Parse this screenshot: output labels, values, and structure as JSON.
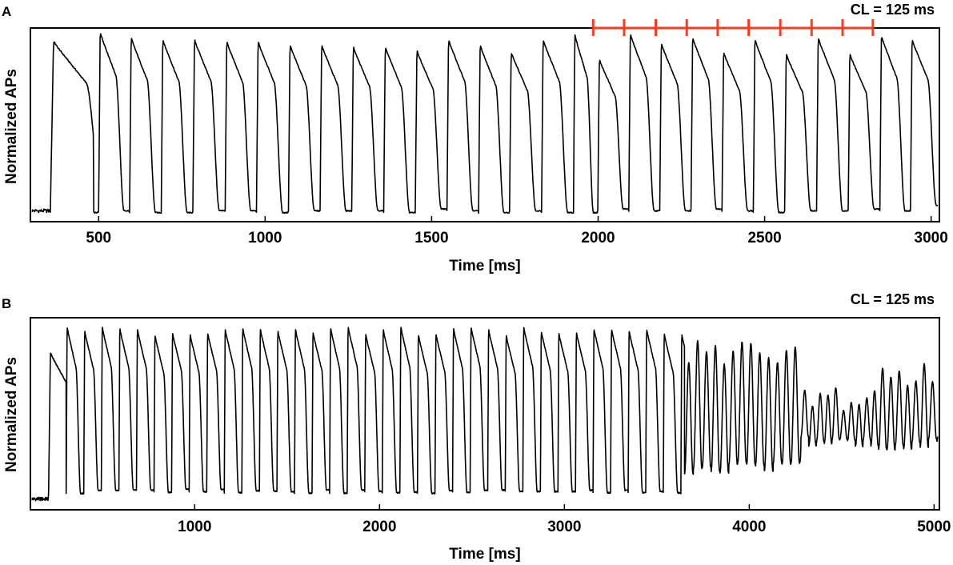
{
  "chart_data": [
    {
      "type": "line",
      "panel_label": "A",
      "annotation": "CL = 125 ms",
      "xlabel": "Time [ms]",
      "ylabel": "Normalized APs",
      "xlim": [
        300,
        3020
      ],
      "ylim": [
        0,
        1
      ],
      "xticks": [
        500,
        1000,
        1500,
        2000,
        2500,
        3000
      ],
      "xtick_labels": [
        "500",
        "1000",
        "1500",
        "2000",
        "2500",
        "3000"
      ],
      "grid": false,
      "trace": {
        "baseline_level": 0.0,
        "upstroke_ms": 355,
        "beat_onsets_ms": [
          355,
          500,
          593,
          688,
          783,
          880,
          974,
          1070,
          1165,
          1260,
          1356,
          1451,
          1546,
          1641,
          1734,
          1830,
          1926,
          1999,
          2092,
          2185,
          2279,
          2372,
          2466,
          2560,
          2656,
          2751,
          2846,
          2938
        ],
        "peaks": [
          0.95,
          1.0,
          0.97,
          0.96,
          0.96,
          0.95,
          0.95,
          0.93,
          0.93,
          0.92,
          0.92,
          0.9,
          0.96,
          0.93,
          0.89,
          0.96,
          0.99,
          0.85,
          0.99,
          0.94,
          0.97,
          0.89,
          0.96,
          0.88,
          0.97,
          0.88,
          0.98,
          0.96
        ],
        "troughs": [
          0.01,
          0.02,
          0.01,
          0.01,
          0.02,
          0.02,
          0.01,
          0.02,
          0.02,
          0.02,
          0.01,
          0.03,
          0.02,
          0.01,
          0.02,
          0.01,
          0.01,
          0.03,
          0.02,
          0.02,
          0.03,
          0.02,
          0.01,
          0.02,
          0.02,
          0.03,
          0.02,
          0.05
        ]
      },
      "pacing_marks_ms": [
        1985,
        2078,
        2173,
        2266,
        2359,
        2452,
        2547,
        2641,
        2734,
        2825
      ]
    },
    {
      "type": "line",
      "panel_label": "B",
      "annotation": "CL = 125 ms",
      "xlabel": "Time [ms]",
      "ylabel": "Normalized APs",
      "xlim": [
        120,
        5020
      ],
      "ylim": [
        0,
        1
      ],
      "xticks": [
        1000,
        2000,
        3000,
        4000,
        5000
      ],
      "xtick_labels": [
        "1000",
        "2000",
        "3000",
        "4000",
        "5000"
      ],
      "grid": false,
      "trace": {
        "baseline_level": 0.0,
        "upstroke_ms": 210,
        "phases": [
          {
            "from_ms": 210,
            "to_ms": 3650,
            "cycle_ms": 95,
            "peak": 0.98,
            "trough": 0.05
          },
          {
            "from_ms": 3650,
            "to_ms": 4280,
            "cycle_ms": 48,
            "peak": 0.9,
            "trough": 0.15
          },
          {
            "from_ms": 4280,
            "to_ms": 4700,
            "cycle_ms": 42,
            "peak": 0.65,
            "trough": 0.3
          },
          {
            "from_ms": 4700,
            "to_ms": 5020,
            "cycle_ms": 45,
            "peak": 0.78,
            "trough": 0.28
          }
        ]
      }
    }
  ]
}
